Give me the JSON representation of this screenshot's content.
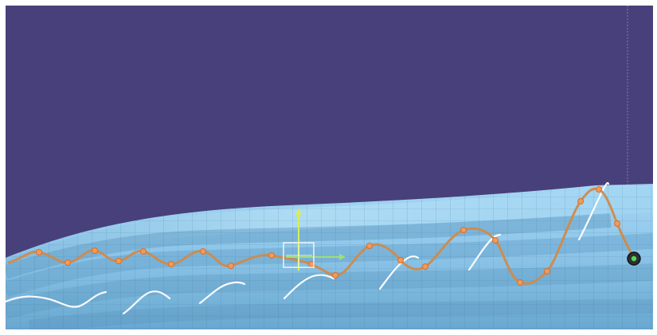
{
  "viewport": {
    "background_color": "#48407a",
    "surface_color": "#8fc7ea",
    "grid_color": "#3f6f8d",
    "curve_color": "#d08a4b",
    "control_point_color": "#f29a57",
    "guide_curve_color": "#ffffff",
    "axis_y_color": "#d7ef58",
    "axis_x_color": "#9fe070",
    "selection_box_color": "#ffffff",
    "reference_line_color": "#b18aa9"
  },
  "icons": {
    "manipulator": "axis-manipulator-icon",
    "endpoint": "endpoint-marker-icon"
  }
}
